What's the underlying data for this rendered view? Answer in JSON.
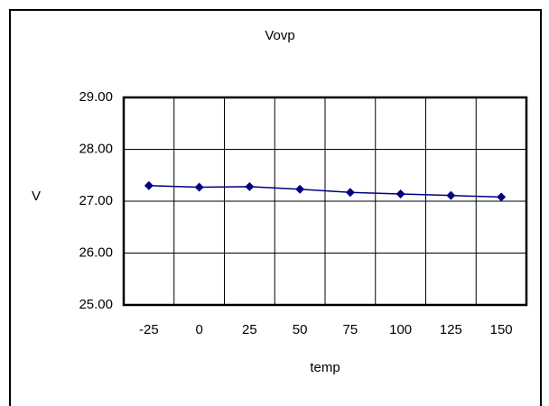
{
  "chart_data": {
    "type": "line",
    "title": "Vovp",
    "xlabel": "temp",
    "ylabel": "V",
    "categories": [
      "-25",
      "0",
      "25",
      "50",
      "75",
      "100",
      "125",
      "150"
    ],
    "series": [
      {
        "name": "Vovp",
        "color": "#000080",
        "values": [
          27.3,
          27.27,
          27.28,
          27.23,
          27.17,
          27.14,
          27.11,
          27.08
        ]
      }
    ],
    "ylim": [
      25,
      29
    ],
    "yticks": [
      {
        "value": 25,
        "label": "25.00"
      },
      {
        "value": 26,
        "label": "26.00"
      },
      {
        "value": 27,
        "label": "27.00"
      },
      {
        "value": 28,
        "label": "28.00"
      },
      {
        "value": 29,
        "label": "29.00"
      }
    ],
    "grid": true,
    "legend": false
  }
}
